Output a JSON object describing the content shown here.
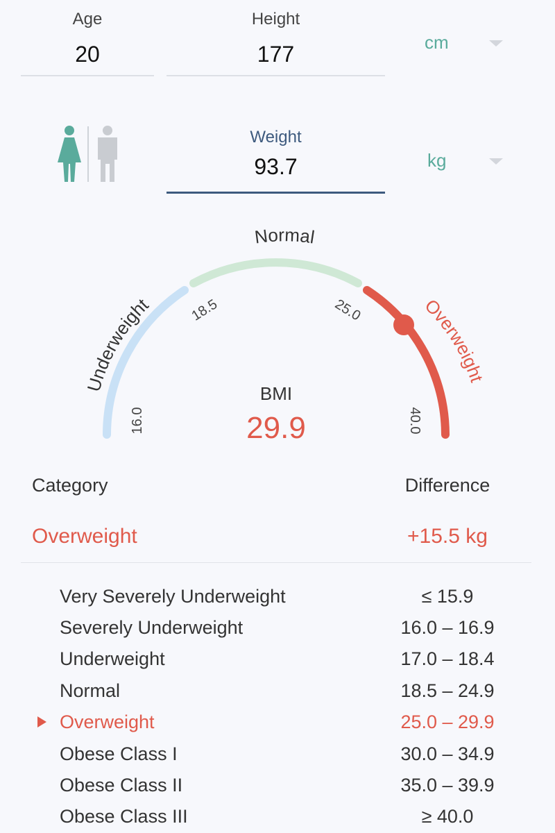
{
  "age": {
    "label": "Age",
    "value": "20"
  },
  "height": {
    "label": "Height",
    "value": "177",
    "unit": "cm"
  },
  "weight": {
    "label": "Weight",
    "value": "93.7",
    "unit": "kg"
  },
  "gender": {
    "selected": "female"
  },
  "gauge": {
    "segments": [
      {
        "name": "Underweight",
        "color": "#c9e1f6"
      },
      {
        "name": "Normal",
        "color": "#cfe8d5"
      },
      {
        "name": "Overweight",
        "color": "#e05a4b"
      }
    ],
    "ticks": [
      "16.0",
      "18.5",
      "25.0",
      "40.0"
    ],
    "bmi_label": "BMI",
    "bmi_value": "29.9",
    "indicator_color": "#e05a4b"
  },
  "result": {
    "category_header": "Category",
    "difference_header": "Difference",
    "category": "Overweight",
    "difference": "+15.5 kg"
  },
  "categories": [
    {
      "name": "Very Severely Underweight",
      "range": "≤ 15.9",
      "active": false
    },
    {
      "name": "Severely Underweight",
      "range": "16.0 – 16.9",
      "active": false
    },
    {
      "name": "Underweight",
      "range": "17.0 – 18.4",
      "active": false
    },
    {
      "name": "Normal",
      "range": "18.5 – 24.9",
      "active": false
    },
    {
      "name": "Overweight",
      "range": "25.0 – 29.9",
      "active": true
    },
    {
      "name": "Obese Class I",
      "range": "30.0 – 34.9",
      "active": false
    },
    {
      "name": "Obese Class II",
      "range": "35.0 – 39.9",
      "active": false
    },
    {
      "name": "Obese Class III",
      "range": "≥ 40.0",
      "active": false
    }
  ],
  "colors": {
    "accent_teal": "#5aab9c",
    "accent_red": "#e05a4b",
    "active_underline": "#3d5a7e"
  }
}
